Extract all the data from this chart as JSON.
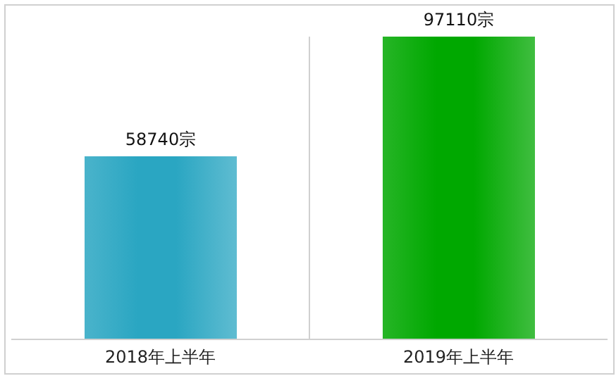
{
  "chart_data": {
    "type": "bar",
    "categories": [
      "2018年上半年",
      "2019年上半年"
    ],
    "values": [
      58740,
      97110
    ],
    "colors": [
      "#2aa6c2",
      "#00a800"
    ],
    "value_labels": [
      "58740宗",
      "97110宗"
    ],
    "grid": "x"
  }
}
